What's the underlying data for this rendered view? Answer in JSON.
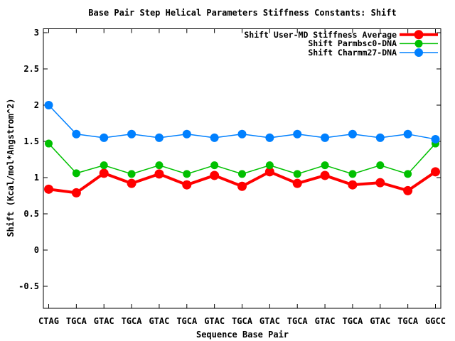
{
  "page": {
    "background": "#ffffff"
  },
  "chart_data": {
    "type": "line",
    "title": "Base Pair Step Helical Parameters Stiffness Constants: Shift",
    "xlabel": "Sequence Base Pair",
    "ylabel": "Shift (Kcal/mol*Angstrom^2)",
    "categories": [
      "CTAG",
      "TGCA",
      "GTAC",
      "TGCA",
      "GTAC",
      "TGCA",
      "GTAC",
      "TGCA",
      "GTAC",
      "TGCA",
      "GTAC",
      "TGCA",
      "GTAC",
      "TGCA",
      "GGCC"
    ],
    "series": [
      {
        "name": "Shift User-MD Stiffness Average",
        "color": "#ff0000",
        "line_width": 4,
        "marker": "circle",
        "marker_radius": 6.5,
        "values": [
          0.84,
          0.79,
          1.06,
          0.92,
          1.05,
          0.9,
          1.03,
          0.88,
          1.08,
          0.92,
          1.03,
          0.9,
          0.93,
          0.82,
          1.08
        ]
      },
      {
        "name": "Shift Parmbsc0-DNA",
        "color": "#00c000",
        "line_width": 1.5,
        "marker": "circle",
        "marker_radius": 5.5,
        "values": [
          1.47,
          1.06,
          1.17,
          1.05,
          1.17,
          1.05,
          1.17,
          1.05,
          1.17,
          1.05,
          1.17,
          1.05,
          1.17,
          1.05,
          1.47
        ]
      },
      {
        "name": "Shift Charmm27-DNA",
        "color": "#0080ff",
        "line_width": 1.5,
        "marker": "circle",
        "marker_radius": 6,
        "values": [
          2.0,
          1.6,
          1.55,
          1.6,
          1.55,
          1.6,
          1.55,
          1.6,
          1.55,
          1.6,
          1.55,
          1.6,
          1.55,
          1.6,
          1.53
        ]
      }
    ],
    "yticks": [
      3,
      2.5,
      2,
      1.5,
      1,
      0.5,
      0,
      -0.5
    ],
    "ytick_labels": [
      "3",
      "2.5",
      "2",
      "1.5",
      "1",
      "0.5",
      "0",
      "-0.5"
    ],
    "ylim": [
      -0.804,
      3.054
    ],
    "grid": false,
    "legend_position": "top-right-inside",
    "axis_color": "#000000",
    "text_color": "#000000"
  }
}
